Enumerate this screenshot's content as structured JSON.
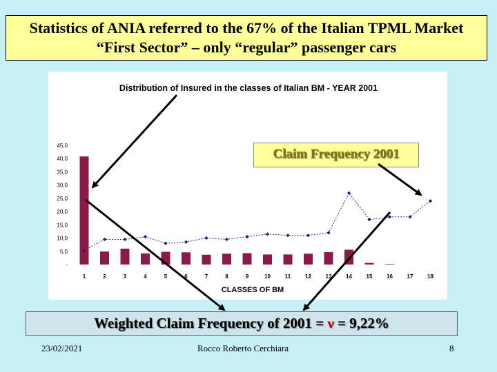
{
  "slide": {
    "title_line1": "Statistics of ANIA referred to the 67% of the Italian TPML Market",
    "title_line2": "“First Sector” – only “regular” passenger cars",
    "claim_label": "Claim Frequency 2001",
    "weighted_prefix": "Weighted Claim Frequency of 2001 = ",
    "weighted_symbol": "ν",
    "weighted_suffix": " =  9,22%",
    "footer_date": "23/02/2021",
    "footer_author": "Rocco Roberto Cerchiara",
    "footer_page": "8"
  },
  "chart_data": {
    "type": "bar",
    "title": "Distribution of Insured in the classes of Italian BM - YEAR 2001",
    "xlabel": "CLASSES OF BM",
    "ylabel": "",
    "ylim": [
      0,
      45
    ],
    "yticks": [
      "-",
      "5,0",
      "10,0",
      "15,0",
      "20,0",
      "25,0",
      "30,0",
      "35,0",
      "40,0",
      "45,0"
    ],
    "categories": [
      "1",
      "2",
      "3",
      "4",
      "5",
      "6",
      "7",
      "8",
      "9",
      "10",
      "11",
      "12",
      "13",
      "14",
      "15",
      "16",
      "17",
      "18"
    ],
    "series": [
      {
        "type": "bar",
        "color": "#8b1a4a",
        "values": [
          40.8,
          4.9,
          6.0,
          4.2,
          4.8,
          4.6,
          3.7,
          4.1,
          4.3,
          3.8,
          3.8,
          4.1,
          4.7,
          5.6,
          0.6,
          0.2,
          0,
          0
        ]
      },
      {
        "type": "line",
        "color": "#1a1a7a",
        "values": [
          5.3,
          9.5,
          9.5,
          10.5,
          8.0,
          8.5,
          10.0,
          9.5,
          10.5,
          11.5,
          11.0,
          11.0,
          12.0,
          27.0,
          17.0,
          18.0,
          18.0,
          24.0
        ]
      }
    ],
    "grid": false,
    "legend": "none"
  }
}
